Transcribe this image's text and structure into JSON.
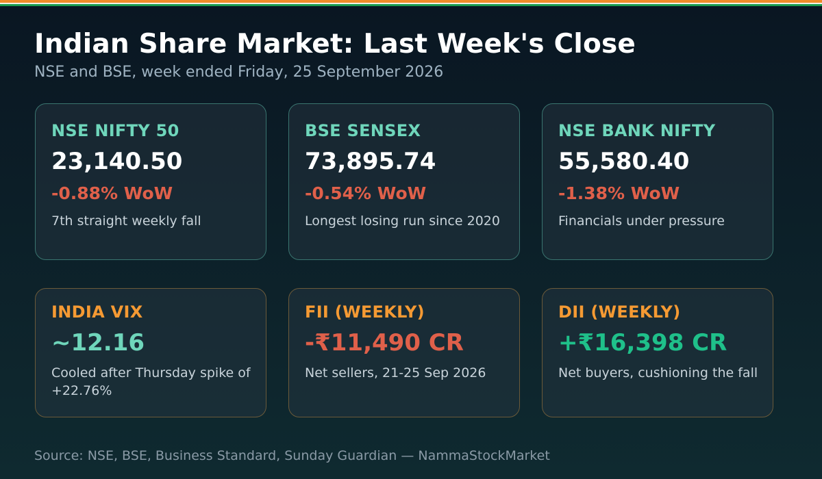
{
  "colors": {
    "stripe_saffron": "#f28c28",
    "stripe_white": "#f4f1e6",
    "stripe_green": "#1a9b4f",
    "index_label": "#6fd6bb",
    "flow_label": "#f59a33",
    "negative": "#e0604a",
    "positive": "#1fc08a"
  },
  "header": {
    "title": "Indian Share Market: Last Week's Close",
    "subtitle": "NSE and BSE, week ended Friday, 25 September 2026"
  },
  "indices": [
    {
      "label": "NSE NIFTY 50",
      "value": "23,140.50",
      "change": "-0.88% WoW",
      "note": "7th straight weekly fall"
    },
    {
      "label": "BSE SENSEX",
      "value": "73,895.74",
      "change": "-0.54% WoW",
      "note": "Longest losing run since 2020"
    },
    {
      "label": "NSE BANK NIFTY",
      "value": "55,580.40",
      "change": "-1.38% WoW",
      "note": "Financials under pressure"
    }
  ],
  "flows": [
    {
      "label": "INDIA VIX",
      "value": "~12.16",
      "note": "Cooled after Thursday spike of +22.76%"
    },
    {
      "label": "FII (WEEKLY)",
      "value": "-₹11,490 CR",
      "note": "Net sellers, 21-25 Sep 2026"
    },
    {
      "label": "DII (WEEKLY)",
      "value": "+₹16,398 CR",
      "note": "Net buyers, cushioning the fall"
    }
  ],
  "footer": {
    "source": "Source: NSE, BSE, Business Standard, Sunday Guardian — NammaStockMarket"
  }
}
